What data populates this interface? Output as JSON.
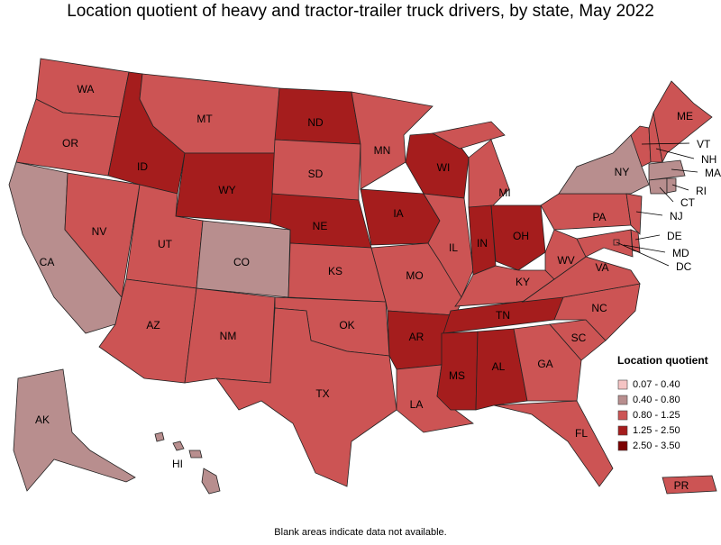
{
  "title": "Location quotient of heavy and tractor-trailer truck drivers, by state, May 2022",
  "legend": {
    "title": "Location quotient",
    "items": [
      {
        "label": "0.07 - 0.40",
        "color": "#f5c4c4"
      },
      {
        "label": "0.40 - 0.80",
        "color": "#b88e8e"
      },
      {
        "label": "0.80 - 1.25",
        "color": "#cc5454"
      },
      {
        "label": "1.25 - 2.50",
        "color": "#a51d1d"
      },
      {
        "label": "2.50 - 3.50",
        "color": "#7a0000"
      }
    ]
  },
  "states": [
    {
      "label": "WA",
      "bin": "0.80 - 1.25"
    },
    {
      "label": "OR",
      "bin": "0.80 - 1.25"
    },
    {
      "label": "CA",
      "bin": "0.40 - 0.80"
    },
    {
      "label": "NV",
      "bin": "0.80 - 1.25"
    },
    {
      "label": "ID",
      "bin": "1.25 - 2.50"
    },
    {
      "label": "MT",
      "bin": "0.80 - 1.25"
    },
    {
      "label": "WY",
      "bin": "1.25 - 2.50"
    },
    {
      "label": "UT",
      "bin": "0.80 - 1.25"
    },
    {
      "label": "AZ",
      "bin": "0.80 - 1.25"
    },
    {
      "label": "CO",
      "bin": "0.40 - 0.80"
    },
    {
      "label": "NM",
      "bin": "0.80 - 1.25"
    },
    {
      "label": "ND",
      "bin": "1.25 - 2.50"
    },
    {
      "label": "SD",
      "bin": "0.80 - 1.25"
    },
    {
      "label": "NE",
      "bin": "1.25 - 2.50"
    },
    {
      "label": "KS",
      "bin": "0.80 - 1.25"
    },
    {
      "label": "OK",
      "bin": "0.80 - 1.25"
    },
    {
      "label": "TX",
      "bin": "0.80 - 1.25"
    },
    {
      "label": "MN",
      "bin": "0.80 - 1.25"
    },
    {
      "label": "IA",
      "bin": "1.25 - 2.50"
    },
    {
      "label": "MO",
      "bin": "0.80 - 1.25"
    },
    {
      "label": "AR",
      "bin": "1.25 - 2.50"
    },
    {
      "label": "LA",
      "bin": "0.80 - 1.25"
    },
    {
      "label": "WI",
      "bin": "1.25 - 2.50"
    },
    {
      "label": "IL",
      "bin": "0.80 - 1.25"
    },
    {
      "label": "MI",
      "bin": "0.80 - 1.25"
    },
    {
      "label": "IN",
      "bin": "1.25 - 2.50"
    },
    {
      "label": "OH",
      "bin": "1.25 - 2.50"
    },
    {
      "label": "KY",
      "bin": "0.80 - 1.25"
    },
    {
      "label": "TN",
      "bin": "1.25 - 2.50"
    },
    {
      "label": "MS",
      "bin": "1.25 - 2.50"
    },
    {
      "label": "AL",
      "bin": "1.25 - 2.50"
    },
    {
      "label": "GA",
      "bin": "0.80 - 1.25"
    },
    {
      "label": "FL",
      "bin": "0.80 - 1.25"
    },
    {
      "label": "SC",
      "bin": "0.80 - 1.25"
    },
    {
      "label": "NC",
      "bin": "0.80 - 1.25"
    },
    {
      "label": "VA",
      "bin": "0.80 - 1.25"
    },
    {
      "label": "WV",
      "bin": "0.80 - 1.25"
    },
    {
      "label": "PA",
      "bin": "0.80 - 1.25"
    },
    {
      "label": "NY",
      "bin": "0.40 - 0.80"
    },
    {
      "label": "VT",
      "bin": "0.80 - 1.25"
    },
    {
      "label": "NH",
      "bin": "0.80 - 1.25"
    },
    {
      "label": "ME",
      "bin": "0.80 - 1.25"
    },
    {
      "label": "MA",
      "bin": "0.40 - 0.80"
    },
    {
      "label": "CT",
      "bin": "0.40 - 0.80"
    },
    {
      "label": "RI",
      "bin": "0.40 - 0.80"
    },
    {
      "label": "NJ",
      "bin": "0.80 - 1.25"
    },
    {
      "label": "DE",
      "bin": "0.80 - 1.25"
    },
    {
      "label": "MD",
      "bin": "0.80 - 1.25"
    },
    {
      "label": "DC",
      "bin": "0.80 - 1.25"
    },
    {
      "label": "AK",
      "bin": "0.40 - 0.80"
    },
    {
      "label": "HI",
      "bin": "0.40 - 0.80"
    },
    {
      "label": "PR",
      "bin": "0.80 - 1.25"
    }
  ],
  "footnote": "Blank areas indicate data not available."
}
